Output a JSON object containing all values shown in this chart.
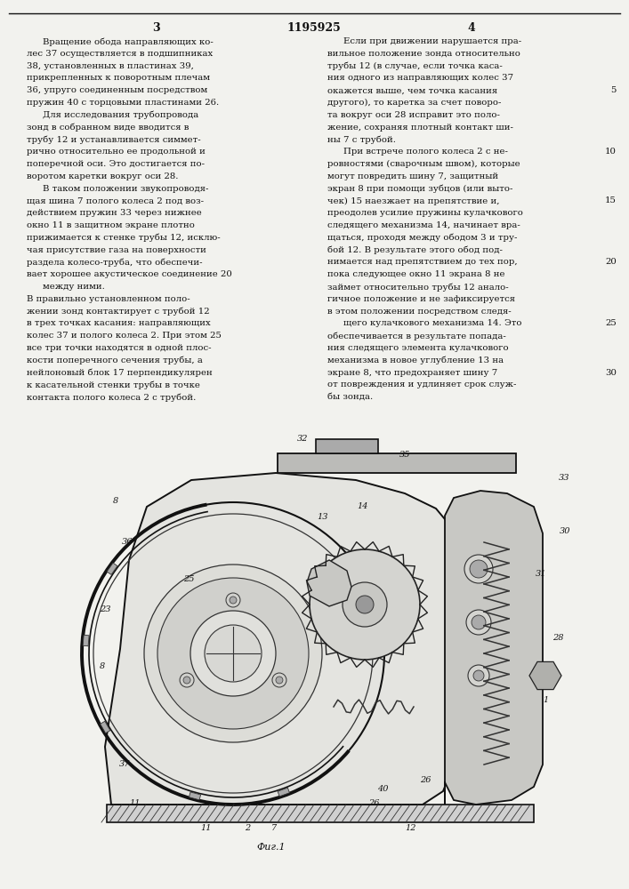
{
  "page_bg": "#f2f2ee",
  "text_color": "#111111",
  "fig_width": 7.07,
  "fig_height": 10.0,
  "dpi": 100,
  "patent_number": "1195925",
  "col_left_header": "3",
  "col_right_header": "4",
  "figure_caption": "Фиг.1",
  "left_text": [
    "Вращение обода направляющих ко-",
    "лес 37 осуществляется в подшипниках",
    "38, установленных в пластинах 39,",
    "прикрепленных к поворотным плечам",
    "36, упруго соединенным посредством",
    "пружин 40 с торцовыми пластинами 26.",
    "Для исследования трубопровода",
    "зонд в собранном виде вводится в",
    "трубу 12 и устанавливается симмет-",
    "рично относительно ее продольной и",
    "поперечной оси. Это достигается по-",
    "воротом каретки вокруг оси 28.",
    "В таком положении звукопроводя-",
    "щая шина 7 полого колеса 2 под воз-",
    "действием пружин 33 через нижнее",
    "окно 11 в защитном экране плотно",
    "прижимается к стенке трубы 12, исклю-",
    "чая присутствие газа на поверхности",
    "раздела колесо-труба, что обеспечи-",
    "вает хорошее акустическое соединение 20",
    "между ними.",
    "В правильно установленном поло-",
    "жении зонд контактирует с трубой 12",
    "в трех точках касания: направляющих",
    "колес 37 и полого колеса 2. При этом 25",
    "все три точки находятся в одной плос-",
    "кости поперечного сечения трубы, а",
    "нейлоновый блок 17 перпендикулярен",
    "к касательной стенки трубы в точке",
    "контакта полого колеса 2 с трубой."
  ],
  "right_text": [
    "Если при движении нарушается пра-",
    "вильное положение зонда относительно",
    "трубы 12 (в случае, если точка каса-",
    "ния одного из направляющих колес 37",
    "окажется выше, чем точка касания",
    "другого), то каретка за счет поворо-",
    "та вокруг оси 28 исправит это поло-",
    "жение, сохраняя плотный контакт ши-",
    "ны 7 с трубой.",
    "При встрече полого колеса 2 с не-",
    "ровностями (сварочным швом), которые",
    "могут повредить шину 7, защитный",
    "экран 8 при помощи зубцов (или выто-",
    "чек) 15 наезжает на препятствие и,",
    "преодолев усилие пружины кулачкового",
    "следящего механизма 14, начинает вра-",
    "щаться, проходя между ободом 3 и тру-",
    "бой 12. В результате этого обод под-",
    "нимается над препятствием до тех пор,",
    "пока следующее окно 11 экрана 8 не",
    "займет относительно трубы 12 анало-",
    "гичное положение и не зафиксируется",
    "в этом положении посредством следя-",
    "щего кулачкового механизма 14. Это",
    "обеспечивается в результате попада-",
    "ния следящего элемента кулачкового",
    "механизма в новое углубление 13 на",
    "экране 8, что предохраняет шину 7",
    "от повреждения и удлиняет срок служ-",
    "бы зонда."
  ],
  "right_line_nums": {
    "4": "5",
    "9": "10",
    "13": "15",
    "18": "20",
    "23": "25",
    "27": "30"
  }
}
